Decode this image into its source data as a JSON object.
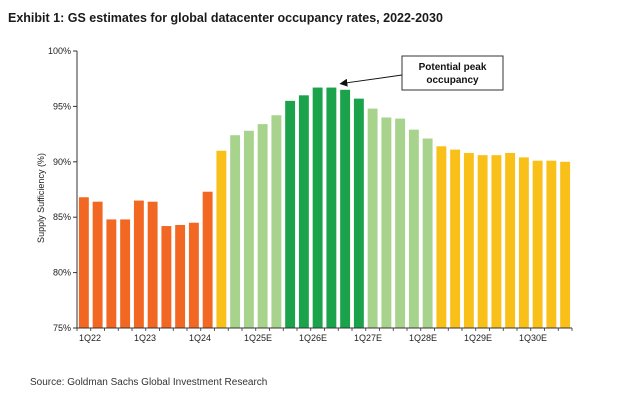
{
  "header": {
    "title": "Exhibit 1: GS estimates for global datacenter occupancy rates, 2022-2030"
  },
  "footer": {
    "source": "Source: Goldman Sachs Global Investment Research"
  },
  "colors": {
    "orange": "#f26722",
    "yellow": "#f9c01a",
    "light_green": "#a8d38d",
    "dark_green": "#1aa34a"
  },
  "chart_data": {
    "type": "bar",
    "ylabel": "Supply Sufficiency (%)",
    "xlabel": "",
    "ylim": [
      75,
      100
    ],
    "yticks": [
      "75%",
      "80%",
      "85%",
      "90%",
      "95%",
      "100%"
    ],
    "grid": false,
    "x_tick_labels": [
      {
        "index": 0,
        "label": "1Q22"
      },
      {
        "index": 4,
        "label": "1Q23"
      },
      {
        "index": 8,
        "label": "1Q24"
      },
      {
        "index": 12,
        "label": "1Q25E"
      },
      {
        "index": 16,
        "label": "1Q26E"
      },
      {
        "index": 20,
        "label": "1Q27E"
      },
      {
        "index": 24,
        "label": "1Q28E"
      },
      {
        "index": 28,
        "label": "1Q29E"
      },
      {
        "index": 32,
        "label": "1Q30E"
      }
    ],
    "categories": [
      "1Q22",
      "2Q22",
      "3Q22",
      "4Q22",
      "1Q23",
      "2Q23",
      "3Q23",
      "4Q23",
      "1Q24",
      "2Q24",
      "3Q24",
      "4Q24",
      "1Q25E",
      "2Q25E",
      "3Q25E",
      "4Q25E",
      "1Q26E",
      "2Q26E",
      "3Q26E",
      "4Q26E",
      "1Q27E",
      "2Q27E",
      "3Q27E",
      "4Q27E",
      "1Q28E",
      "2Q28E",
      "3Q28E",
      "4Q28E",
      "1Q29E",
      "2Q29E",
      "3Q29E",
      "4Q29E",
      "1Q30E",
      "2Q30E",
      "3Q30E",
      "4Q30E"
    ],
    "values": [
      86.8,
      86.4,
      84.8,
      84.8,
      86.5,
      86.4,
      84.2,
      84.3,
      84.5,
      87.3,
      91.0,
      92.4,
      92.8,
      93.4,
      94.2,
      95.5,
      96.0,
      96.7,
      96.7,
      96.5,
      95.7,
      94.8,
      94.0,
      93.9,
      92.9,
      92.1,
      91.4,
      91.1,
      90.8,
      90.6,
      90.6,
      90.8,
      90.4,
      90.1,
      90.1,
      90.0
    ],
    "bar_colors": [
      "orange",
      "orange",
      "orange",
      "orange",
      "orange",
      "orange",
      "orange",
      "orange",
      "orange",
      "orange",
      "yellow",
      "light_green",
      "light_green",
      "light_green",
      "light_green",
      "dark_green",
      "dark_green",
      "dark_green",
      "dark_green",
      "dark_green",
      "dark_green",
      "light_green",
      "light_green",
      "light_green",
      "light_green",
      "light_green",
      "yellow",
      "yellow",
      "yellow",
      "yellow",
      "yellow",
      "yellow",
      "yellow",
      "yellow",
      "yellow",
      "yellow"
    ],
    "annotation": {
      "text_lines": [
        "Potential peak",
        "occupancy"
      ],
      "points_to_index": 18
    }
  }
}
